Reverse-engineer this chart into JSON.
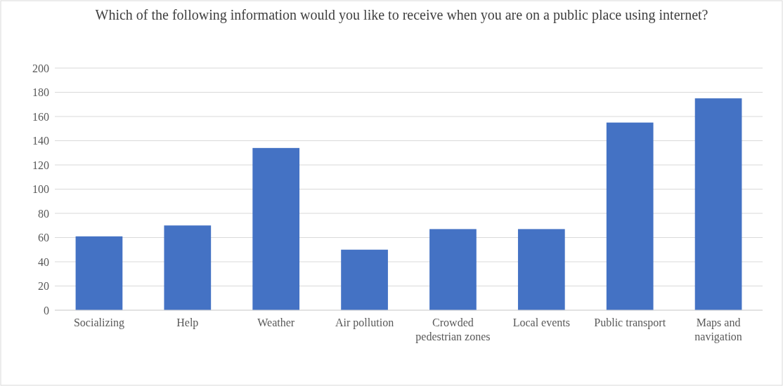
{
  "chart_data": {
    "type": "bar",
    "title": "Which of the following information would you like to receive when you are on a public place using internet?",
    "categories": [
      "Socializing",
      "Help",
      "Weather",
      "Air pollution",
      "Crowded pedestrian zones",
      "Local events",
      "Public transport",
      "Maps and navigation"
    ],
    "values": [
      61,
      70,
      134,
      50,
      67,
      67,
      155,
      175
    ],
    "color": "#4472c4",
    "ylim": [
      0,
      200
    ],
    "yticks": [
      0,
      20,
      40,
      60,
      80,
      100,
      120,
      140,
      160,
      180,
      200
    ],
    "grid": "y"
  }
}
